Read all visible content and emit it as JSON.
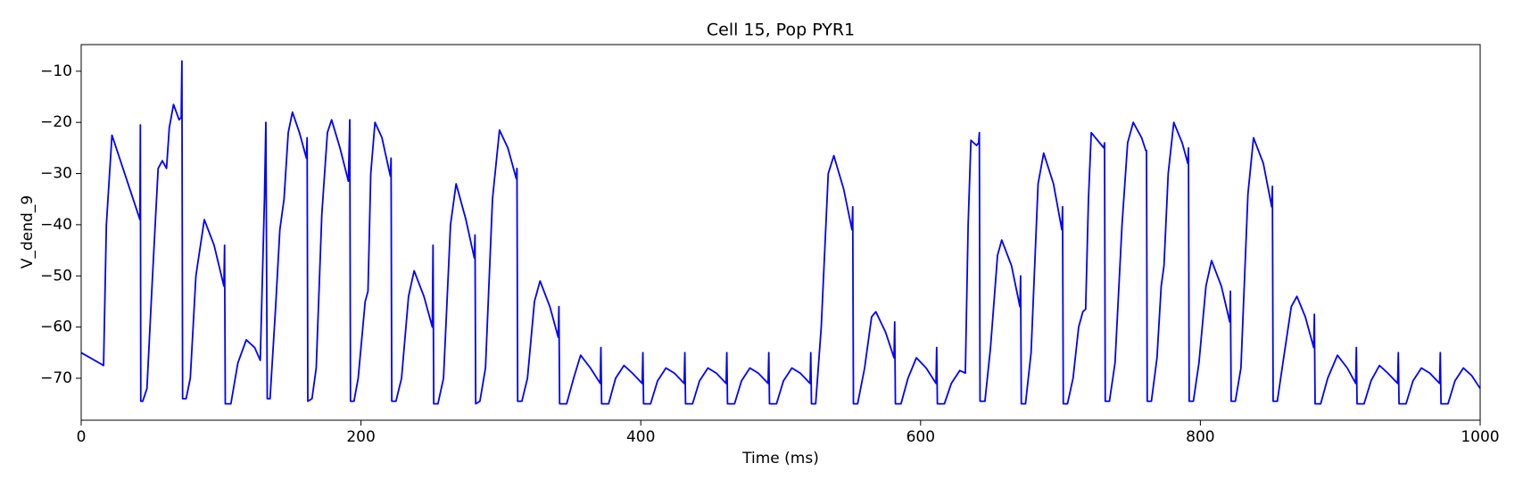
{
  "chart_data": {
    "type": "line",
    "title": "Cell 15, Pop PYR1",
    "x_label": "Time (ms)",
    "y_label": "V_dend_9",
    "color": "#0000ff",
    "grid": false,
    "xlim": [
      0,
      1000
    ],
    "ylim": [
      -78.2,
      -4.8
    ],
    "xticks": [
      0,
      200,
      400,
      600,
      800,
      1000
    ],
    "yticks": [
      {
        "value": -70,
        "label": "−70"
      },
      {
        "value": -60,
        "label": "−60"
      },
      {
        "value": -50,
        "label": "−50"
      },
      {
        "value": -40,
        "label": "−40"
      },
      {
        "value": -30,
        "label": "−30"
      },
      {
        "value": -20,
        "label": "−20"
      },
      {
        "value": -10,
        "label": "−10"
      }
    ],
    "x": [
      0,
      16,
      18,
      22,
      42,
      42.3,
      42.6,
      44,
      47,
      51,
      55,
      58,
      61,
      63,
      66,
      70,
      71.5,
      72,
      72.5,
      75,
      78,
      82,
      88,
      95,
      102,
      102.5,
      103,
      107,
      112,
      118,
      124,
      128,
      131,
      132,
      133,
      135,
      139,
      142,
      145,
      148,
      151,
      156,
      161,
      161.5,
      162,
      165,
      168,
      172,
      176,
      179,
      185,
      191,
      192,
      192.5,
      195,
      198,
      203,
      205,
      207,
      210,
      215,
      221,
      221.5,
      222,
      225,
      229,
      234,
      238,
      245,
      251,
      251.5,
      252,
      255,
      259,
      264,
      268,
      275,
      281,
      281.5,
      282,
      285,
      289,
      294,
      299,
      305,
      311,
      311.5,
      312,
      315,
      319,
      324,
      328,
      335,
      341,
      341.5,
      342,
      347,
      352,
      357,
      364,
      371,
      371.5,
      372,
      377,
      382,
      388,
      394,
      401,
      401.5,
      402,
      407,
      412,
      418,
      424,
      431,
      431.5,
      432,
      437,
      442,
      448,
      454,
      461,
      461.5,
      462,
      467,
      472,
      478,
      484,
      491,
      491.5,
      492,
      497,
      502,
      508,
      514,
      521,
      521.5,
      522,
      525,
      529,
      534,
      538,
      545,
      551,
      551.5,
      552,
      555,
      560,
      565,
      568,
      575,
      581,
      581.5,
      582,
      586,
      591,
      597,
      604,
      611,
      611.5,
      612,
      617,
      622,
      628,
      632,
      634,
      636,
      640,
      641.5,
      642,
      642.5,
      646,
      650,
      655,
      658,
      665,
      671,
      671.5,
      672,
      675,
      679,
      684,
      688,
      695,
      701,
      701.5,
      702,
      705,
      709,
      713,
      716,
      718,
      720,
      722,
      728,
      731,
      731.5,
      732,
      735,
      739,
      744,
      748,
      752,
      758,
      761,
      761.5,
      762,
      765,
      769,
      772,
      774,
      777,
      781,
      787,
      791,
      791.5,
      792,
      795,
      799,
      804,
      808,
      815,
      821,
      821.5,
      822,
      825,
      829,
      834,
      838,
      845,
      851,
      851.5,
      852,
      855,
      859,
      865,
      869,
      875,
      881,
      881.5,
      882,
      886,
      891,
      898,
      905,
      911,
      911.5,
      912,
      917,
      922,
      928,
      934,
      941,
      941.5,
      942,
      947,
      952,
      958,
      964,
      971,
      971.5,
      972,
      977,
      982,
      988,
      994,
      1000
    ],
    "values": [
      -65,
      -67.5,
      -40,
      -22.5,
      -39,
      -20.5,
      -74.5,
      -74.5,
      -72,
      -50,
      -29,
      -27.5,
      -29,
      -21,
      -16.5,
      -19.5,
      -19,
      -8,
      -74,
      -74,
      -70,
      -50,
      -39,
      -44,
      -52,
      -44,
      -75,
      -75,
      -67,
      -62.5,
      -64,
      -66.5,
      -35,
      -20,
      -74,
      -74,
      -56,
      -41,
      -35,
      -22,
      -18,
      -22,
      -27,
      -23,
      -74.5,
      -74,
      -68,
      -38,
      -22,
      -19.5,
      -25,
      -31.5,
      -19.5,
      -74.5,
      -74.5,
      -70,
      -55,
      -53,
      -30,
      -20,
      -23,
      -30.5,
      -27,
      -74.5,
      -74.5,
      -70,
      -54,
      -49,
      -54,
      -60,
      -44,
      -75,
      -75,
      -70,
      -40,
      -32,
      -39,
      -46.5,
      -42,
      -75,
      -74.5,
      -68,
      -35,
      -21.5,
      -25,
      -31,
      -29,
      -74.5,
      -74.5,
      -70,
      -55,
      -51,
      -56,
      -62,
      -56,
      -75,
      -75,
      -70,
      -65.5,
      -68,
      -71,
      -64,
      -75,
      -75,
      -70,
      -67.5,
      -69,
      -71,
      -65,
      -75,
      -75,
      -70.5,
      -68,
      -69,
      -71,
      -65,
      -75,
      -75,
      -70.5,
      -68,
      -69,
      -71,
      -65,
      -75,
      -75,
      -70.5,
      -68,
      -69,
      -71,
      -65,
      -75,
      -75,
      -70.5,
      -68,
      -69,
      -71,
      -65,
      -75,
      -75,
      -60,
      -30,
      -26.5,
      -33,
      -41,
      -36.5,
      -75,
      -75,
      -68,
      -58,
      -57,
      -61,
      -66,
      -59,
      -75,
      -75,
      -70,
      -66,
      -68,
      -71,
      -64,
      -75,
      -75,
      -71,
      -68.5,
      -69,
      -40,
      -23.5,
      -24.5,
      -24,
      -22,
      -74.5,
      -74.5,
      -64,
      -46,
      -43,
      -48,
      -56,
      -50,
      -75,
      -75,
      -65,
      -32,
      -26,
      -32,
      -41,
      -36.5,
      -75,
      -75,
      -70,
      -60,
      -57,
      -56.5,
      -35,
      -22,
      -24,
      -25,
      -24,
      -74.5,
      -74.5,
      -67,
      -40,
      -24,
      -20,
      -23,
      -25.5,
      -25.5,
      -74.5,
      -74.5,
      -66,
      -52,
      -48,
      -30,
      -20,
      -24,
      -28,
      -25,
      -74.5,
      -74.5,
      -67,
      -52,
      -47,
      -52,
      -59,
      -53,
      -74.5,
      -74.5,
      -68,
      -34,
      -23,
      -28,
      -36.5,
      -32.5,
      -74.5,
      -74.5,
      -67,
      -56,
      -54,
      -58,
      -64,
      -57.5,
      -75,
      -75,
      -70,
      -65.5,
      -68,
      -71,
      -64,
      -75,
      -75,
      -70.5,
      -67.5,
      -69,
      -71,
      -65,
      -75,
      -75,
      -70.5,
      -68,
      -69,
      -71,
      -65,
      -75,
      -75,
      -70.5,
      -68,
      -69.5,
      -72
    ]
  }
}
